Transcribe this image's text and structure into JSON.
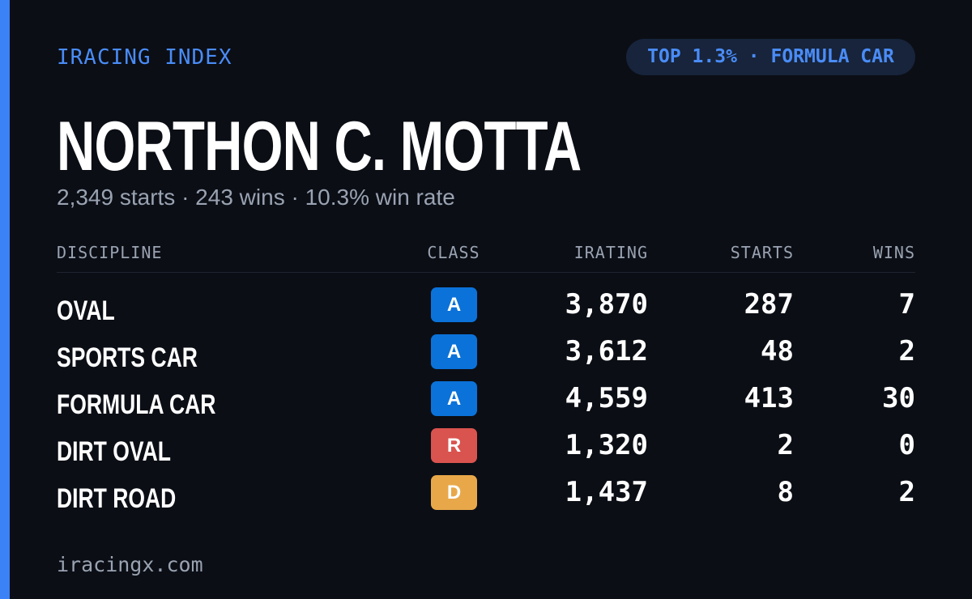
{
  "header": {
    "brand": "IRACING INDEX",
    "badge": "TOP 1.3% · FORMULA CAR"
  },
  "profile": {
    "name": "NORTHON C. MOTTA",
    "summary": "2,349 starts · 243 wins · 10.3% win rate"
  },
  "table": {
    "columns": [
      "DISCIPLINE",
      "CLASS",
      "IRATING",
      "STARTS",
      "WINS"
    ],
    "rows": [
      {
        "discipline": "OVAL",
        "class": "A",
        "class_color": "#0b72d9",
        "irating": "3,870",
        "starts": "287",
        "wins": "7"
      },
      {
        "discipline": "SPORTS CAR",
        "class": "A",
        "class_color": "#0b72d9",
        "irating": "3,612",
        "starts": "48",
        "wins": "2"
      },
      {
        "discipline": "FORMULA CAR",
        "class": "A",
        "class_color": "#0b72d9",
        "irating": "4,559",
        "starts": "413",
        "wins": "30"
      },
      {
        "discipline": "DIRT OVAL",
        "class": "R",
        "class_color": "#d9534f",
        "irating": "1,320",
        "starts": "2",
        "wins": "0"
      },
      {
        "discipline": "DIRT ROAD",
        "class": "D",
        "class_color": "#e8a84a",
        "irating": "1,437",
        "starts": "8",
        "wins": "2"
      }
    ]
  },
  "footer": {
    "site": "iracingx.com"
  }
}
